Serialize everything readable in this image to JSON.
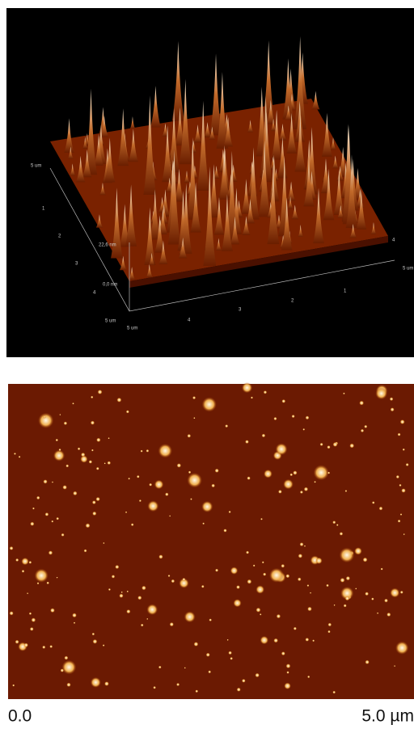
{
  "top_panel": {
    "depth_axis": {
      "labels": [
        "5 um",
        "1",
        "2",
        "3",
        "4",
        "5 um"
      ]
    },
    "width_axis": {
      "labels": [
        "5 um",
        "4",
        "3",
        "2",
        "1"
      ]
    },
    "right_axis": {
      "labels": [
        "4",
        "5 um"
      ]
    },
    "height_axis": {
      "labels": [
        "22,6 nm",
        "0,0 nm"
      ]
    }
  },
  "bottom_panel": {
    "scale": {
      "start": "0.0",
      "end": "5.0 µm"
    }
  }
}
